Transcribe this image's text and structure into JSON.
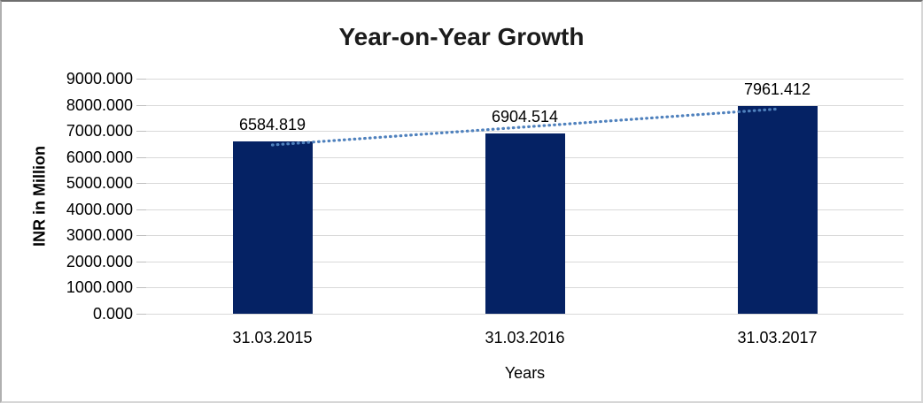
{
  "chart_data": {
    "type": "bar",
    "title": "Year-on-Year Growth",
    "categories": [
      "31.03.2015",
      "31.03.2016",
      "31.03.2017"
    ],
    "values": [
      6584.819,
      6904.514,
      7961.412
    ],
    "data_labels": [
      "6584.819",
      "6904.514",
      "7961.412"
    ],
    "xlabel": "Years",
    "ylabel": "INR in Million",
    "ylim": [
      0,
      9000
    ],
    "y_tick_step": 1000,
    "y_ticks": [
      "9000.000",
      "8000.000",
      "7000.000",
      "6000.000",
      "5000.000",
      "4000.000",
      "3000.000",
      "2000.000",
      "1000.000",
      "0.000"
    ],
    "grid": true,
    "legend": "none",
    "trendline": {
      "type": "linear",
      "style": "dotted"
    },
    "colors": {
      "bar": "#052264",
      "trendline": "#4f81bd",
      "gridline": "#d9d9d9",
      "tickmark": "#bfbfbf",
      "text": "#000000",
      "title": "#1c1c1c"
    }
  }
}
